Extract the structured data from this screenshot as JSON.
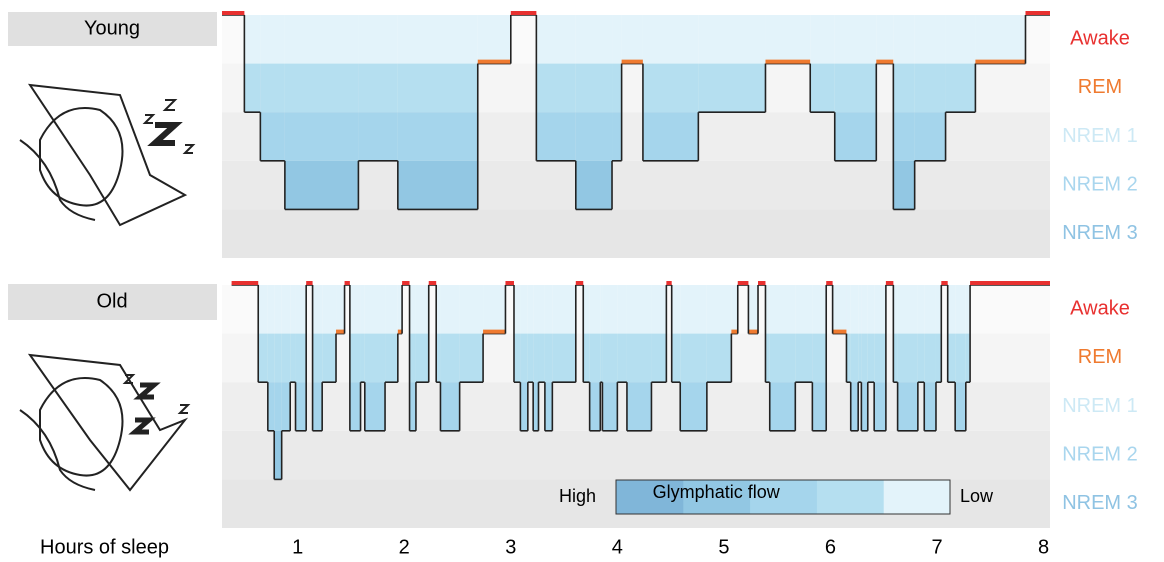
{
  "chart_data": [
    {
      "type": "hypnogram",
      "title": "Young",
      "y_categories": [
        "Awake",
        "REM",
        "NREM 1",
        "NREM 2",
        "NREM 3"
      ],
      "category_colors": [
        "#e8302f",
        "#ef7a2f",
        "#cde9f5",
        "#a9d6ee",
        "#8fc3e3"
      ],
      "fill_colors": [
        "#e3f3fa",
        "#b5dff0",
        "#a5d5ec",
        "#92c7e3",
        "#80b6d9"
      ],
      "edges": [
        0.29,
        0.5,
        0.65,
        0.88,
        1.57,
        1.94,
        2.69,
        3.0,
        3.24,
        3.61,
        3.95,
        4.04,
        4.24,
        4.76,
        5.39,
        5.81,
        6.04,
        6.43,
        6.59,
        6.79,
        7.08,
        7.36,
        7.83,
        8.06
      ],
      "stages": [
        0,
        2,
        3,
        4,
        3,
        4,
        1,
        0,
        3,
        4,
        3,
        1,
        3,
        2,
        1,
        2,
        3,
        1,
        4,
        3,
        2,
        1,
        0
      ],
      "xlim": [
        0.29,
        8.06
      ]
    },
    {
      "type": "hypnogram",
      "title": "Old",
      "y_categories": [
        "Awake",
        "REM",
        "NREM 1",
        "NREM 2",
        "NREM 3"
      ],
      "category_colors": [
        "#e8302f",
        "#ef7a2f",
        "#cde9f5",
        "#a9d6ee",
        "#8fc3e3"
      ],
      "fill_colors": [
        "#e3f3fa",
        "#b5dff0",
        "#a5d5ec",
        "#92c7e3",
        "#80b6d9"
      ],
      "edges": [
        0.38,
        0.63,
        0.72,
        0.78,
        0.85,
        0.93,
        0.98,
        1.08,
        1.14,
        1.23,
        1.36,
        1.44,
        1.49,
        1.59,
        1.63,
        1.82,
        1.94,
        1.98,
        2.05,
        2.11,
        2.23,
        2.3,
        2.34,
        2.52,
        2.74,
        2.95,
        3.03,
        3.09,
        3.16,
        3.21,
        3.26,
        3.32,
        3.39,
        3.61,
        3.68,
        3.74,
        3.84,
        3.86,
        4.0,
        4.09,
        4.32,
        4.46,
        4.51,
        4.59,
        4.84,
        5.07,
        5.13,
        5.23,
        5.32,
        5.39,
        5.43,
        5.67,
        5.83,
        5.96,
        6.02,
        6.15,
        6.19,
        6.26,
        6.29,
        6.35,
        6.41,
        6.52,
        6.59,
        6.63,
        6.82,
        6.88,
        6.99,
        7.04,
        7.1,
        7.17,
        7.27,
        7.31,
        8.06
      ],
      "stages": [
        0,
        2,
        3,
        4,
        3,
        2,
        3,
        0,
        3,
        2,
        1,
        0,
        3,
        2,
        3,
        2,
        1,
        0,
        3,
        2,
        0,
        2,
        3,
        2,
        1,
        0,
        2,
        3,
        2,
        3,
        2,
        3,
        2,
        0,
        2,
        3,
        2,
        3,
        2,
        3,
        2,
        0,
        2,
        3,
        2,
        1,
        0,
        1,
        0,
        2,
        3,
        2,
        3,
        0,
        1,
        2,
        3,
        2,
        3,
        2,
        3,
        0,
        2,
        3,
        2,
        3,
        2,
        0,
        2,
        3,
        2,
        0
      ],
      "xlim": [
        0.29,
        8.06
      ],
      "x_label": "Hours of sleep",
      "xticks": [
        1,
        2,
        3,
        4,
        5,
        6,
        7,
        8
      ],
      "legend": {
        "high": "High",
        "title": "Glymphatic flow",
        "low": "Low"
      }
    }
  ]
}
